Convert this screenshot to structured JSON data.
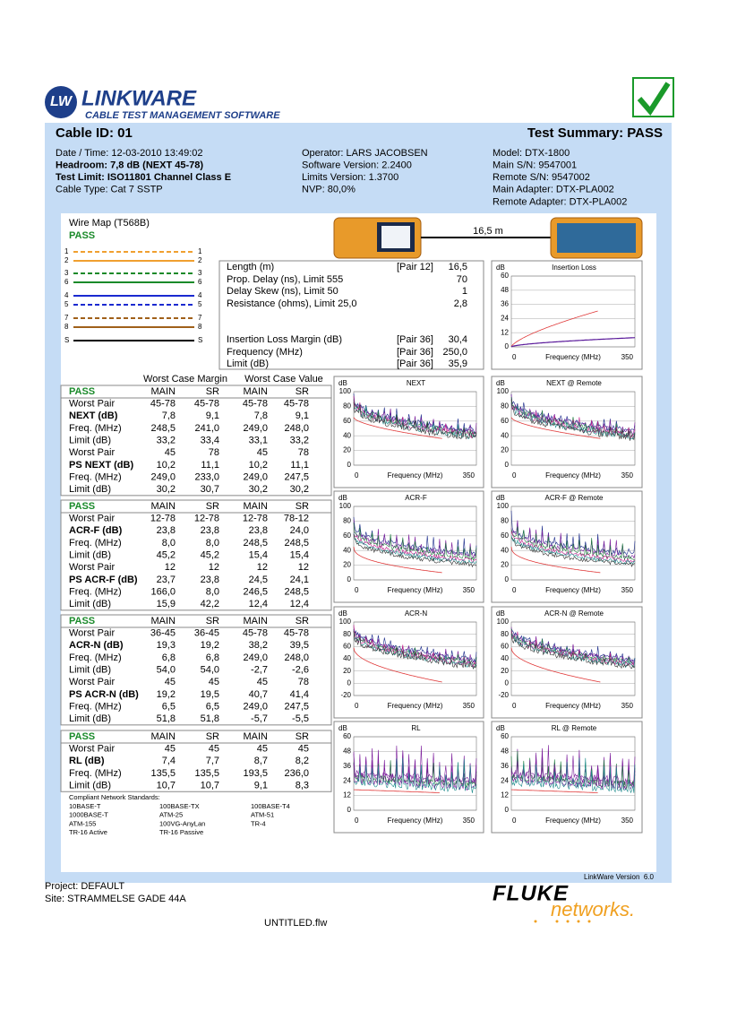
{
  "header": {
    "logo_mark": "LW",
    "logo_title": "LINKWARE",
    "logo_subtitle": "CABLE TEST MANAGEMENT SOFTWARE",
    "cable_id": "Cable ID: 01",
    "summary": "Test Summary: PASS"
  },
  "info": {
    "left": [
      "Date / Time: 12-03-2010 13:49:02",
      "Headroom: 7,8 dB (NEXT 45-78)",
      "Test Limit: ISO11801 Channel Class E",
      "Cable Type: Cat 7 SSTP"
    ],
    "middle": [
      "Operator: LARS JACOBSEN",
      "Software Version: 2.2400",
      "Limits Version: 1.3700",
      "NVP: 80,0%"
    ],
    "right": [
      "Model: DTX-1800",
      "Main S/N: 9547001",
      "Remote S/N: 9547002",
      "Main Adapter: DTX-PLA002",
      "Remote Adapter: DTX-PLA002"
    ]
  },
  "wire_map": {
    "title": "Wire Map (T568B)",
    "result": "PASS",
    "pins": [
      "1",
      "2",
      "3",
      "6",
      "4",
      "5",
      "7",
      "8",
      "S"
    ],
    "length": "16,5 m"
  },
  "measurements": [
    {
      "label": "Length (m)",
      "pair": "[Pair 12]",
      "value": "16,5"
    },
    {
      "label": "Prop. Delay (ns), Limit 555",
      "value": "70"
    },
    {
      "label": "Delay Skew (ns), Limit 50",
      "value": "1"
    },
    {
      "label": "Resistance (ohms), Limit 25,0",
      "value": "2,8"
    },
    {
      "label": "Insertion Loss Margin (dB)",
      "pair": "[Pair 36]",
      "value": "30,4"
    },
    {
      "label": "Frequency (MHz)",
      "pair": "[Pair 36]",
      "value": "250,0"
    },
    {
      "label": "Limit (dB)",
      "pair": "[Pair 36]",
      "value": "35,9"
    }
  ],
  "worst_case": {
    "margin_header": "Worst Case Margin",
    "value_header": "Worst Case Value",
    "blocks": [
      {
        "header": [
          "PASS",
          "MAIN",
          "SR",
          "MAIN",
          "SR"
        ],
        "rows": [
          [
            "Worst Pair",
            "45-78",
            "45-78",
            "45-78",
            "45-78"
          ],
          [
            "NEXT (dB)",
            "7,8",
            "9,1",
            "7,8",
            "9,1"
          ],
          [
            "Freq. (MHz)",
            "248,5",
            "241,0",
            "249,0",
            "248,0"
          ],
          [
            "Limit (dB)",
            "33,2",
            "33,4",
            "33,1",
            "33,2"
          ],
          [
            "Worst Pair",
            "45",
            "78",
            "45",
            "78"
          ],
          [
            "PS NEXT (dB)",
            "10,2",
            "11,1",
            "10,2",
            "11,1"
          ],
          [
            "Freq. (MHz)",
            "249,0",
            "233,0",
            "249,0",
            "247,5"
          ],
          [
            "Limit (dB)",
            "30,2",
            "30,7",
            "30,2",
            "30,2"
          ]
        ]
      },
      {
        "header": [
          "PASS",
          "MAIN",
          "SR",
          "MAIN",
          "SR"
        ],
        "rows": [
          [
            "Worst Pair",
            "12-78",
            "12-78",
            "12-78",
            "78-12"
          ],
          [
            "ACR-F (dB)",
            "23,8",
            "23,8",
            "23,8",
            "24,0"
          ],
          [
            "Freq. (MHz)",
            "8,0",
            "8,0",
            "248,5",
            "248,5"
          ],
          [
            "Limit (dB)",
            "45,2",
            "45,2",
            "15,4",
            "15,4"
          ],
          [
            "Worst Pair",
            "12",
            "12",
            "12",
            "12"
          ],
          [
            "PS ACR-F (dB)",
            "23,7",
            "23,8",
            "24,5",
            "24,1"
          ],
          [
            "Freq. (MHz)",
            "166,0",
            "8,0",
            "246,5",
            "248,5"
          ],
          [
            "Limit (dB)",
            "15,9",
            "42,2",
            "12,4",
            "12,4"
          ]
        ]
      },
      {
        "header": [
          "PASS",
          "MAIN",
          "SR",
          "MAIN",
          "SR"
        ],
        "rows": [
          [
            "Worst Pair",
            "36-45",
            "36-45",
            "45-78",
            "45-78"
          ],
          [
            "ACR-N (dB)",
            "19,3",
            "19,2",
            "38,2",
            "39,5"
          ],
          [
            "Freq. (MHz)",
            "6,8",
            "6,8",
            "249,0",
            "248,0"
          ],
          [
            "Limit (dB)",
            "54,0",
            "54,0",
            "-2,7",
            "-2,6"
          ],
          [
            "Worst Pair",
            "45",
            "45",
            "45",
            "78"
          ],
          [
            "PS ACR-N (dB)",
            "19,2",
            "19,5",
            "40,7",
            "41,4"
          ],
          [
            "Freq. (MHz)",
            "6,5",
            "6,5",
            "249,0",
            "247,5"
          ],
          [
            "Limit (dB)",
            "51,8",
            "51,8",
            "-5,7",
            "-5,5"
          ]
        ]
      },
      {
        "header": [
          "PASS",
          "MAIN",
          "SR",
          "MAIN",
          "SR"
        ],
        "rows": [
          [
            "Worst Pair",
            "45",
            "45",
            "45",
            "45"
          ],
          [
            "RL (dB)",
            "7,4",
            "7,7",
            "8,7",
            "8,2"
          ],
          [
            "Freq. (MHz)",
            "135,5",
            "135,5",
            "193,5",
            "236,0"
          ],
          [
            "Limit (dB)",
            "10,7",
            "10,7",
            "9,1",
            "8,3"
          ]
        ]
      }
    ]
  },
  "standards": {
    "title": "Compliant Network Standards:",
    "items": [
      "10BASE-T",
      "100BASE-TX",
      "100BASE-T4",
      "1000BASE-T",
      "ATM-25",
      "ATM-51",
      "ATM-155",
      "100VG-AnyLan",
      "TR-4",
      "TR-16 Active",
      "TR-16 Passive"
    ]
  },
  "graphs": [
    {
      "title": "Insertion Loss",
      "unit": "dB",
      "yticks": [
        60,
        48,
        36,
        24,
        12,
        0
      ],
      "x_label": "Frequency (MHz)",
      "xticks": [
        0,
        350
      ]
    },
    {
      "title": "NEXT",
      "unit": "dB",
      "yticks": [
        100,
        80,
        60,
        40,
        20,
        0
      ],
      "x_label": "Frequency (MHz)",
      "xticks": [
        0,
        350
      ]
    },
    {
      "title": "NEXT @ Remote",
      "unit": "dB",
      "yticks": [
        100,
        80,
        60,
        40,
        20,
        0
      ],
      "x_label": "Frequency (MHz)",
      "xticks": [
        0,
        350
      ]
    },
    {
      "title": "ACR-F",
      "unit": "dB",
      "yticks": [
        100,
        80,
        60,
        40,
        20,
        0
      ],
      "x_label": "Frequency (MHz)",
      "xticks": [
        0,
        350
      ]
    },
    {
      "title": "ACR-F @ Remote",
      "unit": "dB",
      "yticks": [
        100,
        80,
        60,
        40,
        20,
        0
      ],
      "x_label": "Frequency (MHz)",
      "xticks": [
        0,
        350
      ]
    },
    {
      "title": "ACR-N",
      "unit": "dB",
      "yticks": [
        100,
        80,
        60,
        40,
        20,
        0,
        -20
      ],
      "x_label": "Frequency (MHz)",
      "xticks": [
        0,
        350
      ]
    },
    {
      "title": "ACR-N @ Remote",
      "unit": "dB",
      "yticks": [
        100,
        80,
        60,
        40,
        20,
        0,
        -20
      ],
      "x_label": "Frequency (MHz)",
      "xticks": [
        0,
        350
      ]
    },
    {
      "title": "RL",
      "unit": "dB",
      "yticks": [
        60,
        48,
        36,
        24,
        12,
        0
      ],
      "x_label": "Frequency (MHz)",
      "xticks": [
        0,
        350
      ]
    },
    {
      "title": "RL @ Remote",
      "unit": "dB",
      "yticks": [
        60,
        48,
        36,
        24,
        12,
        0
      ],
      "x_label": "Frequency (MHz)",
      "xticks": [
        0,
        350
      ]
    }
  ],
  "footer": {
    "version": "LinkWare Version  6.0",
    "project": "Project: DEFAULT",
    "site": "Site: STRAMMELSE GADE 44A",
    "file": "UNTITLED.flw",
    "brand": "FLUKE",
    "brand_sub": "networks."
  }
}
